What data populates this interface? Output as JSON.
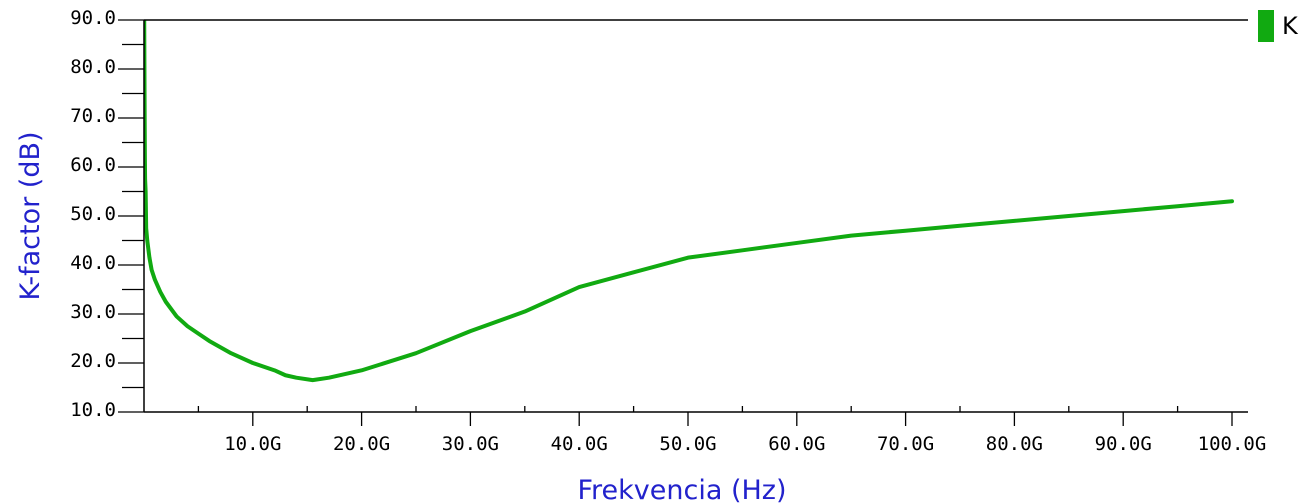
{
  "chart_data": {
    "type": "line",
    "xlabel": "Frekvencia (Hz)",
    "ylabel": "K-factor (dB)",
    "xlim": [
      0,
      100
    ],
    "ylim": [
      10,
      90
    ],
    "x_unit_suffix": "G",
    "x_ticks": [
      {
        "value": 10,
        "label": "10.0G"
      },
      {
        "value": 20,
        "label": "20.0G"
      },
      {
        "value": 30,
        "label": "30.0G"
      },
      {
        "value": 40,
        "label": "40.0G"
      },
      {
        "value": 50,
        "label": "50.0G"
      },
      {
        "value": 60,
        "label": "60.0G"
      },
      {
        "value": 70,
        "label": "70.0G"
      },
      {
        "value": 80,
        "label": "80.0G"
      },
      {
        "value": 90,
        "label": "90.0G"
      },
      {
        "value": 100,
        "label": "100.0G"
      }
    ],
    "y_ticks": [
      {
        "value": 10,
        "label": "10.0"
      },
      {
        "value": 20,
        "label": "20.0"
      },
      {
        "value": 30,
        "label": "30.0"
      },
      {
        "value": 40,
        "label": "40.0"
      },
      {
        "value": 50,
        "label": "50.0"
      },
      {
        "value": 60,
        "label": "60.0"
      },
      {
        "value": 70,
        "label": "70.0"
      },
      {
        "value": 80,
        "label": "80.0"
      },
      {
        "value": 90,
        "label": "90.0"
      }
    ],
    "legend": {
      "position": "top-right"
    },
    "series": [
      {
        "name": "K",
        "color": "#11aa11",
        "x": [
          0.02,
          0.05,
          0.08,
          0.1,
          0.15,
          0.2,
          0.3,
          0.5,
          0.7,
          1.0,
          1.5,
          2.0,
          3.0,
          4.0,
          5.0,
          6.0,
          8.0,
          10.0,
          12.0,
          13.0,
          14.0,
          15.5,
          17.0,
          20.0,
          25.0,
          30.0,
          35.0,
          40.0,
          45.0,
          50.0,
          55.0,
          60.0,
          65.0,
          70.0,
          75.0,
          80.0,
          85.0,
          90.0,
          95.0,
          100.0
        ],
        "y": [
          90.0,
          75.0,
          62.0,
          57.5,
          55.0,
          47.5,
          45.0,
          41.5,
          39.0,
          37.0,
          34.5,
          32.5,
          29.5,
          27.5,
          26.0,
          24.5,
          22.0,
          20.0,
          18.5,
          17.5,
          17.0,
          16.5,
          17.0,
          18.5,
          22.0,
          26.5,
          30.5,
          35.5,
          38.5,
          41.5,
          43.0,
          44.5,
          46.0,
          47.0,
          48.0,
          49.0,
          50.0,
          51.0,
          52.0,
          53.0
        ]
      }
    ]
  }
}
